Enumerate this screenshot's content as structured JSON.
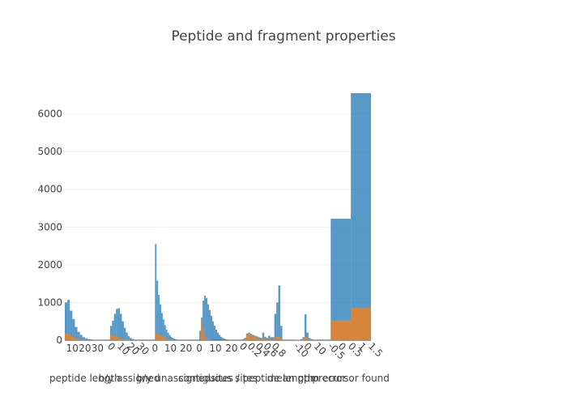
{
  "title": "Peptide and fragment properties",
  "chart_data": [
    {
      "type": "histogram",
      "x_label": "peptide length",
      "xlim": [
        4,
        36
      ],
      "xticks": [
        10,
        20,
        30
      ],
      "ylim": [
        0,
        6700
      ],
      "yticks": [
        0,
        1000,
        2000,
        3000,
        4000,
        5000,
        6000
      ],
      "grid": true,
      "bins": [
        4,
        6,
        8,
        10,
        12,
        14,
        16,
        18,
        20,
        22,
        24,
        26,
        28,
        30,
        32,
        34,
        36
      ],
      "series": [
        {
          "color": "#1f77b4",
          "values": [
            1000,
            1070,
            780,
            560,
            350,
            220,
            140,
            80,
            50,
            30,
            20,
            10,
            8,
            5,
            3,
            2
          ]
        },
        {
          "color": "#ff7f0e",
          "values": [
            180,
            170,
            130,
            90,
            60,
            40,
            25,
            15,
            10,
            5,
            3,
            2,
            1,
            1,
            0,
            0
          ]
        }
      ]
    },
    {
      "type": "histogram",
      "x_label": "b/y assigned",
      "xlim": [
        -1,
        40
      ],
      "xticks": [
        0,
        10,
        20,
        30
      ],
      "ylim": [
        0,
        6700
      ],
      "grid": true,
      "tickangle": 45,
      "bins": [
        0,
        2,
        4,
        6,
        8,
        10,
        12,
        14,
        16,
        18,
        20,
        22,
        24,
        26,
        28,
        30,
        32,
        34,
        36,
        38,
        40
      ],
      "series": [
        {
          "color": "#1f77b4",
          "values": [
            380,
            520,
            700,
            830,
            850,
            700,
            500,
            330,
            200,
            110,
            60,
            30,
            15,
            8,
            4,
            2,
            1,
            0,
            0,
            0
          ]
        },
        {
          "color": "#ff7f0e",
          "values": [
            140,
            130,
            120,
            100,
            80,
            60,
            40,
            25,
            15,
            10,
            5,
            3,
            2,
            1,
            0,
            0,
            0,
            0,
            0,
            0
          ]
        }
      ]
    },
    {
      "type": "histogram",
      "x_label": "b/y unassigned",
      "xlim": [
        -1,
        25
      ],
      "xticks": [
        0,
        10,
        20
      ],
      "ylim": [
        0,
        6700
      ],
      "grid": true,
      "bins": [
        0,
        1,
        2,
        3,
        4,
        5,
        6,
        7,
        8,
        9,
        10,
        11,
        12,
        13,
        14,
        15,
        16,
        17,
        18,
        19,
        20,
        21,
        22,
        23,
        24,
        25
      ],
      "series": [
        {
          "color": "#1f77b4",
          "values": [
            2550,
            1580,
            1200,
            950,
            720,
            550,
            400,
            280,
            200,
            140,
            90,
            60,
            40,
            25,
            15,
            10,
            6,
            4,
            2,
            1,
            1,
            0,
            0,
            0,
            0
          ]
        },
        {
          "color": "#ff7f0e",
          "values": [
            200,
            180,
            150,
            130,
            110,
            90,
            70,
            50,
            35,
            25,
            15,
            10,
            6,
            4,
            2,
            1,
            0,
            0,
            0,
            0,
            0,
            0,
            0,
            0,
            0
          ]
        }
      ]
    },
    {
      "type": "histogram",
      "x_label": "contiguous sites",
      "xlim": [
        -1,
        24
      ],
      "xticks": [
        0,
        10,
        20
      ],
      "ylim": [
        0,
        6700
      ],
      "grid": true,
      "bins": [
        0,
        1,
        2,
        3,
        4,
        5,
        6,
        7,
        8,
        9,
        10,
        11,
        12,
        13,
        14,
        15,
        16,
        17,
        18,
        19,
        20,
        21,
        22,
        23,
        24
      ],
      "series": [
        {
          "color": "#1f77b4",
          "values": [
            250,
            600,
            1050,
            1180,
            1120,
            950,
            800,
            650,
            500,
            380,
            280,
            200,
            140,
            90,
            60,
            40,
            25,
            15,
            10,
            5,
            3,
            2,
            1,
            0
          ]
        },
        {
          "color": "#ff7f0e",
          "values": [
            0,
            520,
            300,
            120,
            60,
            30,
            15,
            8,
            4,
            2,
            1,
            0,
            0,
            0,
            0,
            0,
            0,
            0,
            0,
            0,
            0,
            0,
            0,
            0
          ]
        }
      ]
    },
    {
      "type": "histogram",
      "x_label": "sites / peptide length",
      "xlim": [
        0,
        1
      ],
      "xticks": [
        0,
        0.2,
        0.4,
        0.6,
        0.8
      ],
      "ylim": [
        0,
        6700
      ],
      "grid": true,
      "tickangle": 45,
      "bins": [
        0,
        0.05,
        0.1,
        0.15,
        0.2,
        0.25,
        0.3,
        0.35,
        0.4,
        0.45,
        0.5,
        0.55,
        0.6,
        0.65,
        0.7,
        0.75,
        0.8,
        0.85,
        0.9,
        0.95,
        1
      ],
      "series": [
        {
          "color": "#1f77b4",
          "values": [
            30,
            60,
            180,
            200,
            170,
            140,
            120,
            100,
            80,
            60,
            200,
            90,
            60,
            120,
            80,
            80,
            700,
            1000,
            1450,
            380
          ]
        },
        {
          "color": "#ff7f0e",
          "values": [
            20,
            50,
            150,
            170,
            140,
            110,
            90,
            70,
            50,
            40,
            60,
            40,
            30,
            40,
            30,
            30,
            90,
            90,
            100,
            40
          ]
        }
      ]
    },
    {
      "type": "histogram",
      "x_label": "mean ppm error",
      "xlim": [
        -20,
        20
      ],
      "xticks": [
        -10,
        0,
        10
      ],
      "ylim": [
        0,
        6700
      ],
      "grid": true,
      "tickangle": 45,
      "bins": [
        -20,
        -18,
        -16,
        -14,
        -12,
        -10,
        -8,
        -6,
        -4,
        -2,
        0,
        2,
        4,
        6,
        8,
        10,
        12,
        14,
        16,
        18,
        20
      ],
      "series": [
        {
          "color": "#1f77b4",
          "values": [
            0,
            0,
            0,
            0,
            5,
            10,
            15,
            30,
            80,
            690,
            200,
            60,
            30,
            15,
            10,
            5,
            0,
            0,
            0,
            0
          ]
        },
        {
          "color": "#ff7f0e",
          "values": [
            0,
            0,
            0,
            2,
            5,
            8,
            10,
            15,
            30,
            120,
            60,
            20,
            10,
            5,
            3,
            0,
            0,
            0,
            0,
            0
          ]
        }
      ]
    },
    {
      "type": "histogram",
      "x_label": "precursor found",
      "xlim": [
        -0.5,
        1.5
      ],
      "xticks": [
        -0.5,
        0,
        0.5,
        1,
        1.5
      ],
      "ylim": [
        0,
        6700
      ],
      "grid": true,
      "tickangle": 45,
      "bins": [
        -0.5,
        0.5,
        1.5
      ],
      "series": [
        {
          "color": "#1f77b4",
          "values": [
            3220,
            6550
          ]
        },
        {
          "color": "#ff7f0e",
          "values": [
            530,
            860
          ]
        }
      ]
    }
  ]
}
